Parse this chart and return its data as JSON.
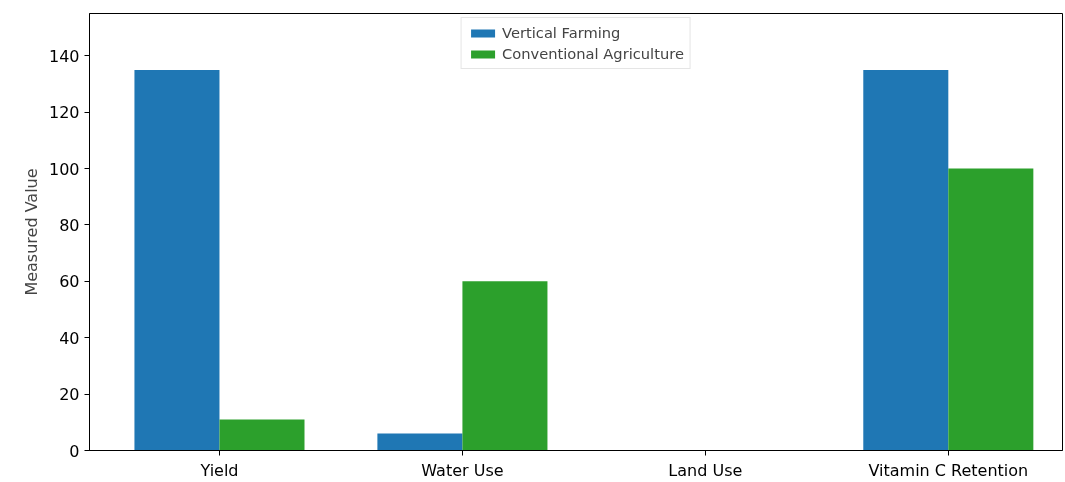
{
  "chart_data": {
    "type": "bar",
    "ylabel": "Measured Value",
    "categories": [
      "Yield",
      "Water Use",
      "Land Use",
      "Vitamin C Retention"
    ],
    "series": [
      {
        "name": "Vertical Farming",
        "color": "#1f77b4",
        "values": [
          135,
          6,
          0,
          135
        ]
      },
      {
        "name": "Conventional Agriculture",
        "color": "#2ca02c",
        "values": [
          11,
          60,
          0,
          100
        ]
      }
    ],
    "ylim": [
      0,
      155
    ],
    "yticks": [
      0,
      20,
      40,
      60,
      80,
      100,
      120,
      140
    ],
    "grid": false,
    "legend": "top"
  }
}
